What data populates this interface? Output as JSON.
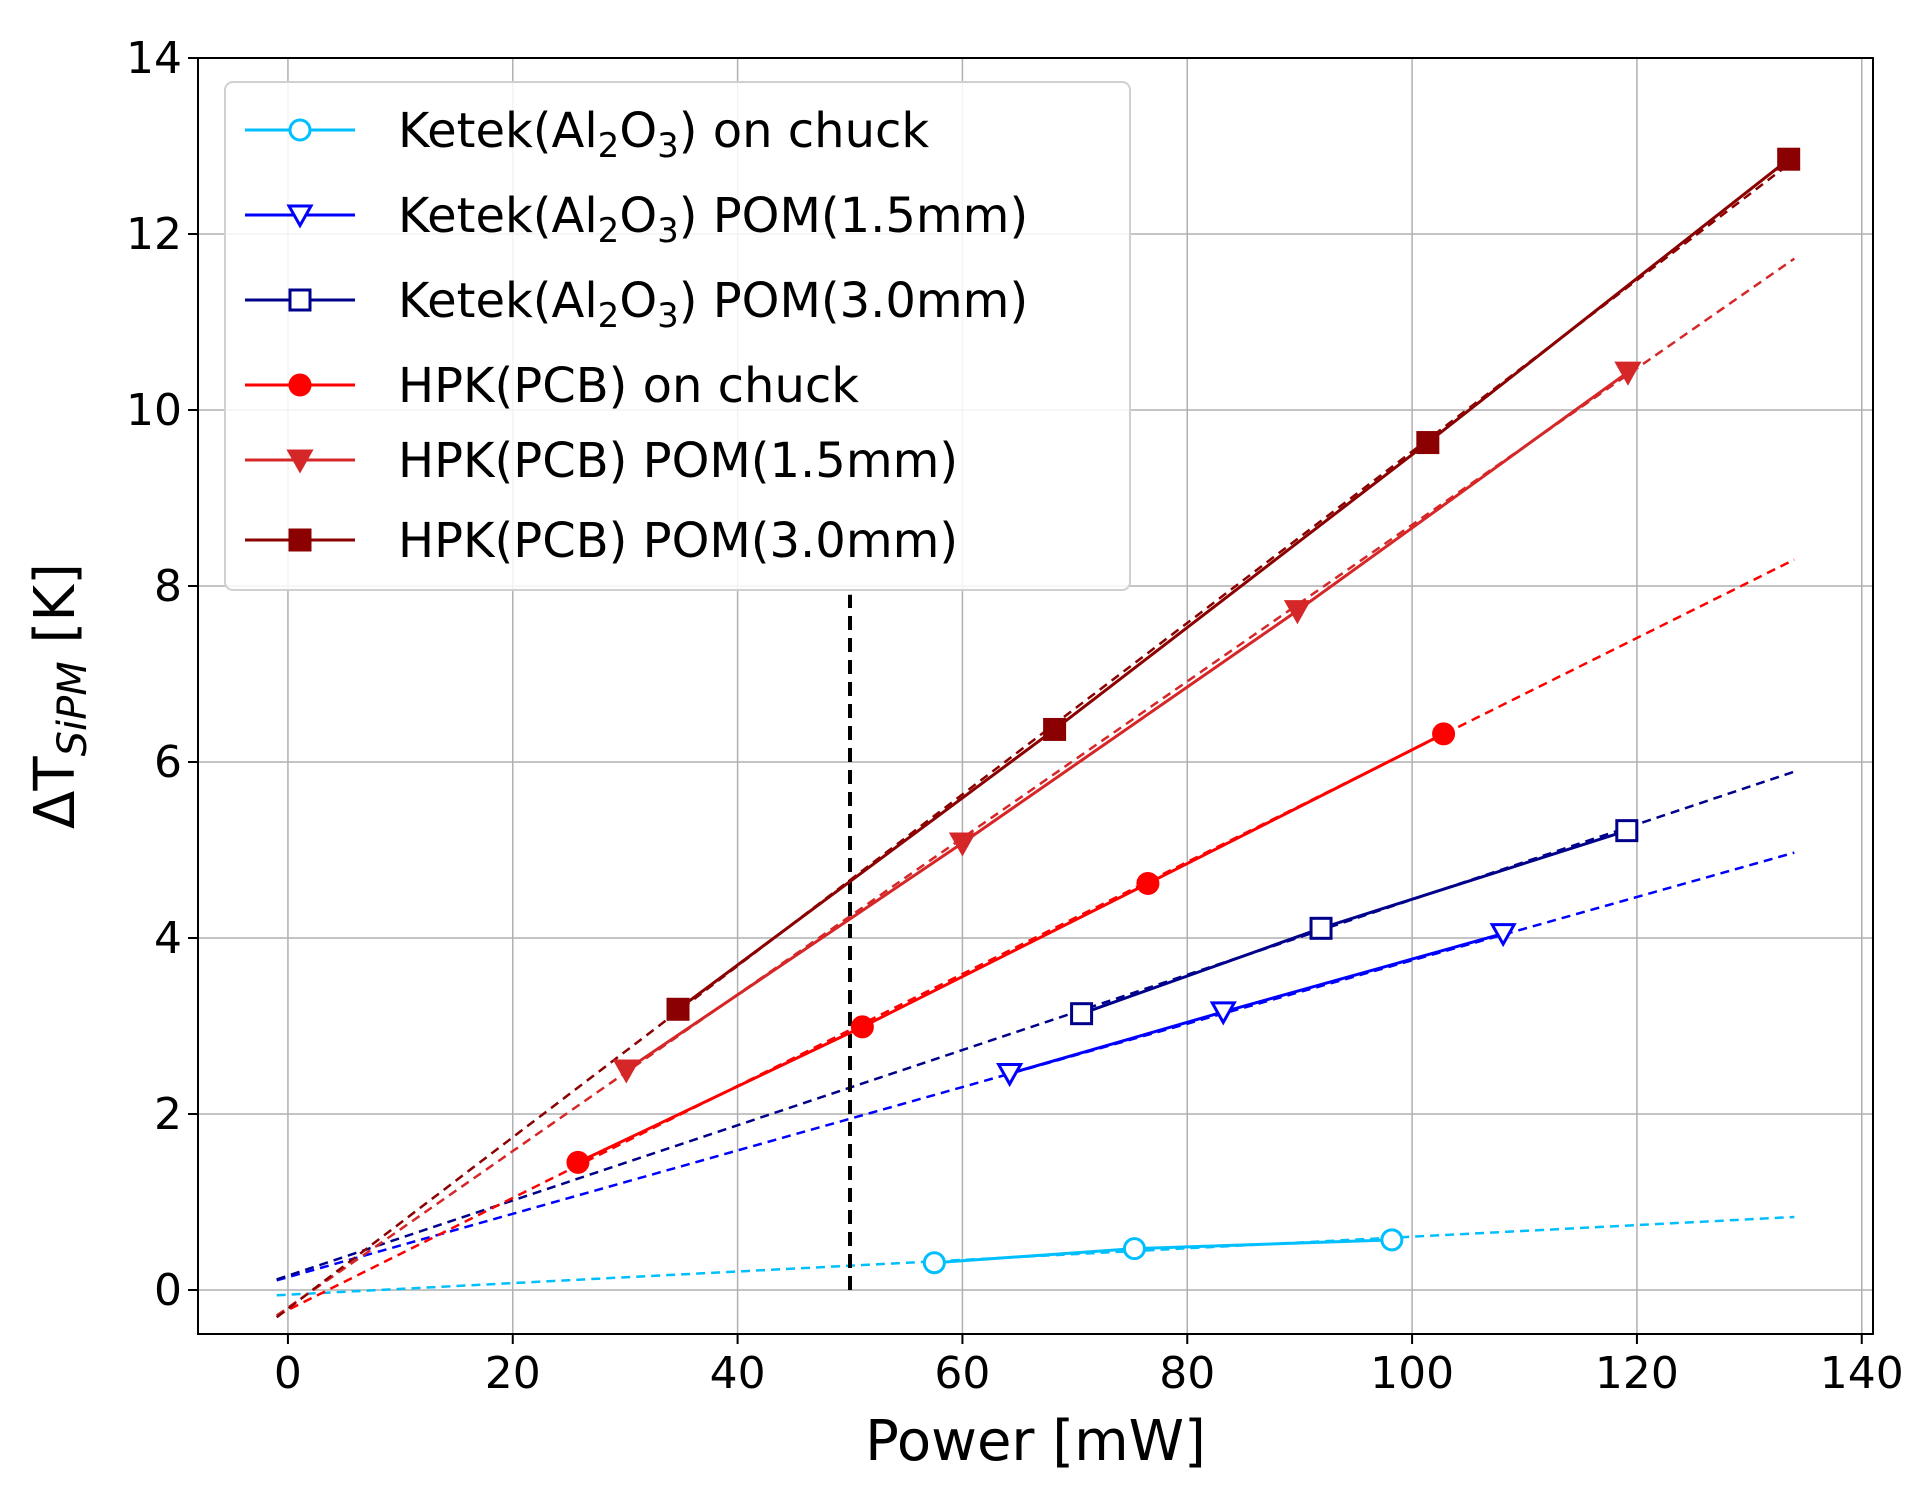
{
  "chart_data": {
    "type": "line",
    "title": "",
    "xlabel": "Power [mW]",
    "ylabel": {
      "main": "ΔT",
      "sub": "SiPM",
      "unit": " [K]"
    },
    "xlim": [
      -8,
      141
    ],
    "ylim": [
      -0.5,
      14
    ],
    "xticks": [
      0,
      20,
      40,
      60,
      80,
      100,
      120,
      140
    ],
    "yticks": [
      0,
      2,
      4,
      6,
      8,
      10,
      12,
      14
    ],
    "xtick_labels": [
      "0",
      "20",
      "40",
      "60",
      "80",
      "100",
      "120",
      "140"
    ],
    "ytick_labels": [
      "0",
      "2",
      "4",
      "6",
      "8",
      "10",
      "12",
      "14"
    ],
    "grid": true,
    "legend_position": "top-left",
    "vline": {
      "x": 50,
      "y_range": [
        0,
        7.9
      ],
      "color": "#000000",
      "style": "dashed"
    },
    "series": [
      {
        "name": "Ketek(Al2O3) on chuck",
        "legend": {
          "pre": "Ketek(Al",
          "sub1": "2",
          "mid": "O",
          "sub2": "3",
          "post": ") on chuck"
        },
        "color": "#00bfff",
        "marker": "circle-open",
        "x": [
          57.5,
          75.3,
          98.2
        ],
        "y": [
          0.31,
          0.47,
          0.57
        ],
        "fit": {
          "x": [
            -1,
            134
          ],
          "y": [
            -0.06,
            0.83
          ]
        }
      },
      {
        "name": "Ketek(Al2O3) POM(1.5mm)",
        "legend": {
          "pre": "Ketek(Al",
          "sub1": "2",
          "mid": "O",
          "sub2": "3",
          "post": ") POM(1.5mm)"
        },
        "color": "#0000ff",
        "marker": "triangle-down-open",
        "x": [
          64.2,
          83.2,
          108.1
        ],
        "y": [
          2.46,
          3.16,
          4.05
        ],
        "fit": {
          "x": [
            -1,
            134
          ],
          "y": [
            0.11,
            4.97
          ]
        }
      },
      {
        "name": "Ketek(Al2O3) POM(3.0mm)",
        "legend": {
          "pre": "Ketek(Al",
          "sub1": "2",
          "mid": "O",
          "sub2": "3",
          "post": ") POM(3.0mm)"
        },
        "color": "#00008b",
        "marker": "square-open",
        "x": [
          70.6,
          91.9,
          119.1
        ],
        "y": [
          3.14,
          4.11,
          5.22
        ],
        "fit": {
          "x": [
            -1,
            134
          ],
          "y": [
            0.12,
            5.89
          ]
        }
      },
      {
        "name": "HPK(PCB) on chuck",
        "legend": {
          "pre": "HPK(PCB) on chuck"
        },
        "color": "#ff0000",
        "marker": "circle-filled",
        "x": [
          25.8,
          51.1,
          76.5,
          102.8
        ],
        "y": [
          1.45,
          2.99,
          4.62,
          6.32
        ],
        "fit": {
          "x": [
            -1,
            134
          ],
          "y": [
            -0.29,
            8.3
          ]
        }
      },
      {
        "name": "HPK(PCB) POM(1.5mm)",
        "legend": {
          "pre": "HPK(PCB) POM(1.5mm)"
        },
        "color": "#d62728",
        "marker": "triangle-down-filled",
        "x": [
          30.1,
          60.0,
          89.8,
          119.2
        ],
        "y": [
          2.5,
          5.08,
          7.72,
          10.43
        ],
        "fit": {
          "x": [
            -1,
            134
          ],
          "y": [
            -0.29,
            11.72
          ]
        }
      },
      {
        "name": "HPK(PCB) POM(3.0mm)",
        "legend": {
          "pre": "HPK(PCB) POM(3.0mm)"
        },
        "color": "#8b0000",
        "marker": "square-filled",
        "x": [
          34.7,
          68.2,
          101.4,
          133.5
        ],
        "y": [
          3.19,
          6.37,
          9.63,
          12.85
        ],
        "fit": {
          "x": [
            -1,
            134
          ],
          "y": [
            -0.31,
            12.84
          ]
        }
      }
    ]
  }
}
